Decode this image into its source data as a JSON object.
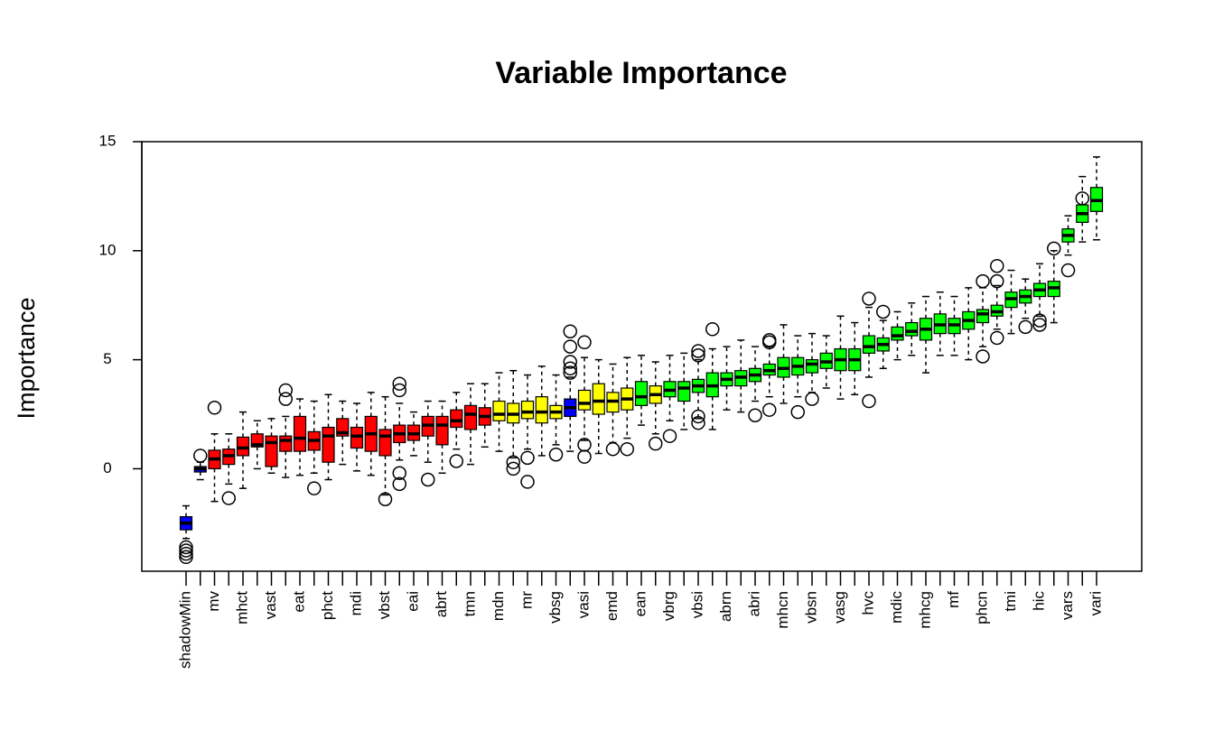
{
  "chart_data": {
    "type": "boxplot",
    "title": "Variable Importance",
    "xlabel": "",
    "ylabel": "Importance",
    "ylim": [
      -4.7,
      15
    ],
    "yticks": [
      0,
      5,
      10,
      15
    ],
    "grid": false,
    "legend": "none",
    "colors": {
      "shadow": "#0000ff",
      "rejected": "#ff0000",
      "tentative": "#ffff00",
      "confirmed": "#00ff00"
    },
    "categories_labeled": [
      "shadowMin",
      "mv",
      "mhct",
      "vast",
      "eat",
      "phct",
      "mdi",
      "vbst",
      "eai",
      "abrt",
      "tmn",
      "mdn",
      "mr",
      "vbsg",
      "vasi",
      "emd",
      "ean",
      "vbrg",
      "vbsi",
      "abrn",
      "abri",
      "mhcn",
      "vbsn",
      "vasg",
      "hvc",
      "mdic",
      "mhcg",
      "mf",
      "phcn",
      "tmi",
      "hic",
      "vars",
      "vari"
    ],
    "boxes": [
      {
        "label": "shadowMin",
        "status": "shadow",
        "wlo": -3.2,
        "q1": -2.8,
        "med": -2.5,
        "q3": -2.2,
        "whi": -1.7,
        "out": [
          -3.6,
          -3.75,
          -3.9,
          -4.05
        ]
      },
      {
        "label": "",
        "status": "shadow",
        "wlo": -0.5,
        "q1": -0.15,
        "med": 0,
        "q3": 0.1,
        "whi": 0.3,
        "out": [
          0.6
        ]
      },
      {
        "label": "mv",
        "status": "rejected",
        "wlo": -1.5,
        "q1": 0,
        "med": 0.45,
        "q3": 0.85,
        "whi": 1.6,
        "out": [
          2.8
        ]
      },
      {
        "label": "",
        "status": "rejected",
        "wlo": -0.7,
        "q1": 0.2,
        "med": 0.6,
        "q3": 0.9,
        "whi": 1.6,
        "out": [
          -1.35
        ]
      },
      {
        "label": "mhct",
        "status": "rejected",
        "wlo": -0.9,
        "q1": 0.6,
        "med": 0.95,
        "q3": 1.45,
        "whi": 2.6,
        "out": []
      },
      {
        "label": "",
        "status": "rejected",
        "wlo": 0.0,
        "q1": 1.0,
        "med": 1.1,
        "q3": 1.6,
        "whi": 2.2,
        "out": []
      },
      {
        "label": "vast",
        "status": "rejected",
        "wlo": -0.2,
        "q1": 0.1,
        "med": 1.2,
        "q3": 1.5,
        "whi": 2.3,
        "out": []
      },
      {
        "label": "",
        "status": "rejected",
        "wlo": -0.4,
        "q1": 0.8,
        "med": 1.3,
        "q3": 1.5,
        "whi": 2.4,
        "out": [
          3.2,
          3.6
        ]
      },
      {
        "label": "eat",
        "status": "rejected",
        "wlo": -0.3,
        "q1": 0.8,
        "med": 1.4,
        "q3": 2.4,
        "whi": 3.2,
        "out": []
      },
      {
        "label": "",
        "status": "rejected",
        "wlo": -0.2,
        "q1": 0.85,
        "med": 1.3,
        "q3": 1.7,
        "whi": 3.1,
        "out": [
          -0.9
        ]
      },
      {
        "label": "phct",
        "status": "rejected",
        "wlo": -0.5,
        "q1": 0.3,
        "med": 1.5,
        "q3": 1.9,
        "whi": 3.4,
        "out": []
      },
      {
        "label": "",
        "status": "rejected",
        "wlo": 0.2,
        "q1": 1.5,
        "med": 1.65,
        "q3": 2.3,
        "whi": 3.1,
        "out": []
      },
      {
        "label": "mdi",
        "status": "rejected",
        "wlo": -0.1,
        "q1": 0.95,
        "med": 1.5,
        "q3": 1.9,
        "whi": 3.0,
        "out": []
      },
      {
        "label": "",
        "status": "rejected",
        "wlo": -0.3,
        "q1": 0.8,
        "med": 1.6,
        "q3": 2.4,
        "whi": 3.5,
        "out": []
      },
      {
        "label": "vbst",
        "status": "rejected",
        "wlo": -1.2,
        "q1": 0.6,
        "med": 1.5,
        "q3": 1.8,
        "whi": 3.3,
        "out": [
          -1.4
        ]
      },
      {
        "label": "",
        "status": "rejected",
        "wlo": 0.4,
        "q1": 1.2,
        "med": 1.6,
        "q3": 2.0,
        "whi": 3.0,
        "out": [
          -0.2,
          -0.7,
          3.6,
          3.9
        ]
      },
      {
        "label": "eai",
        "status": "rejected",
        "wlo": 0.6,
        "q1": 1.3,
        "med": 1.6,
        "q3": 2.0,
        "whi": 2.6,
        "out": []
      },
      {
        "label": "",
        "status": "rejected",
        "wlo": 0.3,
        "q1": 1.5,
        "med": 2.0,
        "q3": 2.4,
        "whi": 3.1,
        "out": [
          -0.5
        ]
      },
      {
        "label": "abrt",
        "status": "rejected",
        "wlo": -0.2,
        "q1": 1.1,
        "med": 2.0,
        "q3": 2.4,
        "whi": 3.1,
        "out": []
      },
      {
        "label": "",
        "status": "rejected",
        "wlo": 0.9,
        "q1": 1.9,
        "med": 2.2,
        "q3": 2.7,
        "whi": 3.5,
        "out": [
          0.35
        ]
      },
      {
        "label": "tmn",
        "status": "rejected",
        "wlo": 0.2,
        "q1": 1.8,
        "med": 2.5,
        "q3": 2.9,
        "whi": 3.9,
        "out": []
      },
      {
        "label": "",
        "status": "rejected",
        "wlo": 1.0,
        "q1": 2.0,
        "med": 2.4,
        "q3": 2.8,
        "whi": 3.9,
        "out": []
      },
      {
        "label": "mdn",
        "status": "tentative",
        "wlo": 0.8,
        "q1": 2.2,
        "med": 2.5,
        "q3": 3.1,
        "whi": 4.4,
        "out": []
      },
      {
        "label": "",
        "status": "tentative",
        "wlo": 0.5,
        "q1": 2.1,
        "med": 2.5,
        "q3": 3.0,
        "whi": 4.5,
        "out": [
          0.3,
          0.0
        ]
      },
      {
        "label": "mr",
        "status": "tentative",
        "wlo": 0.9,
        "q1": 2.3,
        "med": 2.6,
        "q3": 3.1,
        "whi": 4.3,
        "out": [
          0.5,
          -0.6
        ]
      },
      {
        "label": "",
        "status": "tentative",
        "wlo": 0.6,
        "q1": 2.1,
        "med": 2.6,
        "q3": 3.3,
        "whi": 4.7,
        "out": []
      },
      {
        "label": "vbsg",
        "status": "tentative",
        "wlo": 1.1,
        "q1": 2.3,
        "med": 2.6,
        "q3": 2.9,
        "whi": 4.3,
        "out": [
          0.65
        ]
      },
      {
        "label": "",
        "status": "shadow",
        "wlo": 0.8,
        "q1": 2.4,
        "med": 2.8,
        "q3": 3.2,
        "whi": 4.2,
        "out": [
          4.4,
          4.6,
          4.9,
          5.6,
          6.3
        ]
      },
      {
        "label": "vasi",
        "status": "tentative",
        "wlo": 1.3,
        "q1": 2.7,
        "med": 3.0,
        "q3": 3.6,
        "whi": 5.1,
        "out": [
          1.1,
          0.55,
          5.8
        ]
      },
      {
        "label": "",
        "status": "tentative",
        "wlo": 0.7,
        "q1": 2.5,
        "med": 3.1,
        "q3": 3.9,
        "whi": 5.0,
        "out": []
      },
      {
        "label": "emd",
        "status": "tentative",
        "wlo": 1.2,
        "q1": 2.6,
        "med": 3.1,
        "q3": 3.5,
        "whi": 4.8,
        "out": [
          0.9
        ]
      },
      {
        "label": "",
        "status": "tentative",
        "wlo": 1.4,
        "q1": 2.7,
        "med": 3.2,
        "q3": 3.7,
        "whi": 5.1,
        "out": [
          0.9
        ]
      },
      {
        "label": "ean",
        "status": "confirmed",
        "wlo": 2.0,
        "q1": 2.9,
        "med": 3.3,
        "q3": 4.0,
        "whi": 5.2,
        "out": []
      },
      {
        "label": "",
        "status": "tentative",
        "wlo": 1.6,
        "q1": 3.0,
        "med": 3.4,
        "q3": 3.8,
        "whi": 4.9,
        "out": [
          1.15
        ]
      },
      {
        "label": "vbrg",
        "status": "confirmed",
        "wlo": 2.2,
        "q1": 3.3,
        "med": 3.6,
        "q3": 4.0,
        "whi": 5.2,
        "out": [
          1.5
        ]
      },
      {
        "label": "",
        "status": "confirmed",
        "wlo": 1.8,
        "q1": 3.1,
        "med": 3.7,
        "q3": 4.0,
        "whi": 5.3,
        "out": []
      },
      {
        "label": "vbsi",
        "status": "confirmed",
        "wlo": 2.3,
        "q1": 3.5,
        "med": 3.8,
        "q3": 4.1,
        "whi": 5.0,
        "out": [
          2.1,
          2.4,
          5.2,
          5.4
        ]
      },
      {
        "label": "",
        "status": "confirmed",
        "wlo": 1.8,
        "q1": 3.3,
        "med": 3.8,
        "q3": 4.4,
        "whi": 5.5,
        "out": [
          6.4
        ]
      },
      {
        "label": "abrn",
        "status": "confirmed",
        "wlo": 2.7,
        "q1": 3.8,
        "med": 4.1,
        "q3": 4.4,
        "whi": 5.6,
        "out": []
      },
      {
        "label": "",
        "status": "confirmed",
        "wlo": 2.6,
        "q1": 3.8,
        "med": 4.2,
        "q3": 4.5,
        "whi": 5.9,
        "out": []
      },
      {
        "label": "abri",
        "status": "confirmed",
        "wlo": 3.1,
        "q1": 4.0,
        "med": 4.3,
        "q3": 4.6,
        "whi": 5.6,
        "out": [
          2.45
        ]
      },
      {
        "label": "",
        "status": "confirmed",
        "wlo": 3.3,
        "q1": 4.3,
        "med": 4.5,
        "q3": 4.8,
        "whi": 5.6,
        "out": [
          2.7,
          5.8,
          5.9
        ]
      },
      {
        "label": "mhcn",
        "status": "confirmed",
        "wlo": 3.0,
        "q1": 4.2,
        "med": 4.6,
        "q3": 5.1,
        "whi": 6.6,
        "out": []
      },
      {
        "label": "",
        "status": "confirmed",
        "wlo": 3.3,
        "q1": 4.3,
        "med": 4.7,
        "q3": 5.1,
        "whi": 6.1,
        "out": [
          2.6
        ]
      },
      {
        "label": "vbsn",
        "status": "confirmed",
        "wlo": 3.5,
        "q1": 4.4,
        "med": 4.8,
        "q3": 5.0,
        "whi": 6.2,
        "out": [
          3.2
        ]
      },
      {
        "label": "",
        "status": "confirmed",
        "wlo": 3.7,
        "q1": 4.6,
        "med": 4.9,
        "q3": 5.3,
        "whi": 6.1,
        "out": []
      },
      {
        "label": "vasg",
        "status": "confirmed",
        "wlo": 3.2,
        "q1": 4.5,
        "med": 5.0,
        "q3": 5.5,
        "whi": 7.0,
        "out": []
      },
      {
        "label": "",
        "status": "confirmed",
        "wlo": 3.4,
        "q1": 4.5,
        "med": 5.0,
        "q3": 5.5,
        "whi": 6.7,
        "out": []
      },
      {
        "label": "hvc",
        "status": "confirmed",
        "wlo": 4.2,
        "q1": 5.3,
        "med": 5.6,
        "q3": 6.1,
        "whi": 7.4,
        "out": [
          3.1,
          7.8
        ]
      },
      {
        "label": "",
        "status": "confirmed",
        "wlo": 4.6,
        "q1": 5.4,
        "med": 5.7,
        "q3": 6.0,
        "whi": 6.8,
        "out": [
          7.2
        ]
      },
      {
        "label": "mdic",
        "status": "confirmed",
        "wlo": 5.0,
        "q1": 5.9,
        "med": 6.1,
        "q3": 6.5,
        "whi": 7.2,
        "out": []
      },
      {
        "label": "",
        "status": "confirmed",
        "wlo": 5.2,
        "q1": 6.1,
        "med": 6.3,
        "q3": 6.7,
        "whi": 7.6,
        "out": []
      },
      {
        "label": "mhcg",
        "status": "confirmed",
        "wlo": 4.4,
        "q1": 5.9,
        "med": 6.4,
        "q3": 6.9,
        "whi": 7.9,
        "out": []
      },
      {
        "label": "",
        "status": "confirmed",
        "wlo": 5.2,
        "q1": 6.2,
        "med": 6.6,
        "q3": 7.1,
        "whi": 8.1,
        "out": []
      },
      {
        "label": "mf",
        "status": "confirmed",
        "wlo": 5.2,
        "q1": 6.2,
        "med": 6.6,
        "q3": 6.9,
        "whi": 7.9,
        "out": []
      },
      {
        "label": "",
        "status": "confirmed",
        "wlo": 5.0,
        "q1": 6.4,
        "med": 6.8,
        "q3": 7.2,
        "whi": 8.3,
        "out": []
      },
      {
        "label": "phcn",
        "status": "confirmed",
        "wlo": 5.6,
        "q1": 6.7,
        "med": 7.1,
        "q3": 7.3,
        "whi": 8.3,
        "out": [
          5.15,
          8.6
        ]
      },
      {
        "label": "",
        "status": "confirmed",
        "wlo": 6.4,
        "q1": 7.0,
        "med": 7.2,
        "q3": 7.5,
        "whi": 8.4,
        "out": [
          6.0,
          8.6,
          9.3
        ]
      },
      {
        "label": "tmi",
        "status": "confirmed",
        "wlo": 6.2,
        "q1": 7.4,
        "med": 7.8,
        "q3": 8.1,
        "whi": 9.1,
        "out": []
      },
      {
        "label": "",
        "status": "confirmed",
        "wlo": 6.9,
        "q1": 7.6,
        "med": 7.9,
        "q3": 8.2,
        "whi": 8.7,
        "out": [
          6.5
        ]
      },
      {
        "label": "hic",
        "status": "confirmed",
        "wlo": 7.0,
        "q1": 7.9,
        "med": 8.2,
        "q3": 8.5,
        "whi": 9.4,
        "out": [
          6.6,
          6.8
        ]
      },
      {
        "label": "",
        "status": "confirmed",
        "wlo": 6.7,
        "q1": 7.9,
        "med": 8.3,
        "q3": 8.6,
        "whi": 10.0,
        "out": [
          10.1
        ]
      },
      {
        "label": "vars",
        "status": "confirmed",
        "wlo": 9.8,
        "q1": 10.4,
        "med": 10.7,
        "q3": 11.0,
        "whi": 11.6,
        "out": [
          9.1
        ]
      },
      {
        "label": "",
        "status": "confirmed",
        "wlo": 10.4,
        "q1": 11.3,
        "med": 11.7,
        "q3": 12.1,
        "whi": 13.4,
        "out": [
          12.4
        ]
      },
      {
        "label": "vari",
        "status": "confirmed",
        "wlo": 10.5,
        "q1": 11.8,
        "med": 12.3,
        "q3": 12.9,
        "whi": 14.3,
        "out": []
      }
    ]
  }
}
